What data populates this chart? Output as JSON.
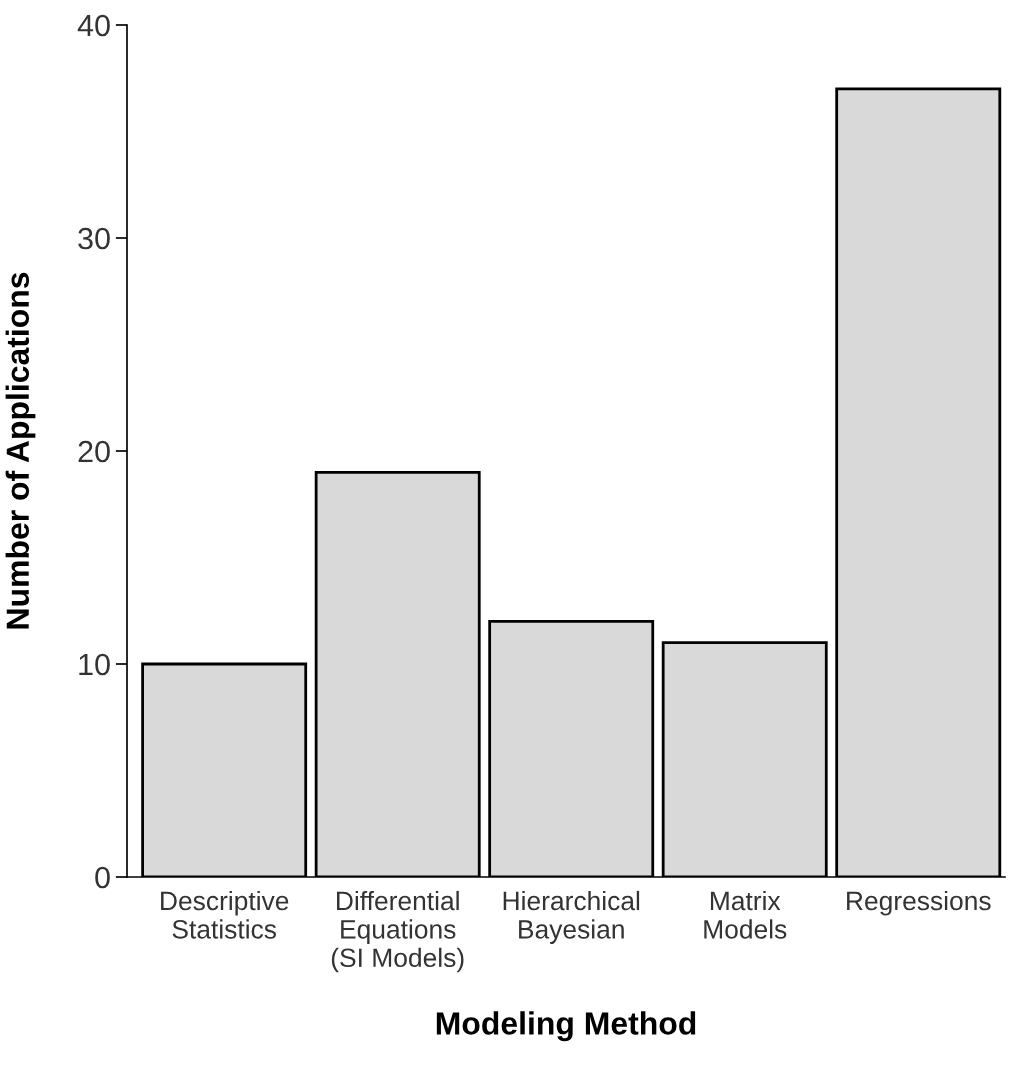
{
  "chart_data": {
    "type": "bar",
    "xlabel": "Modeling Method",
    "ylabel": "Number of Applications",
    "categories": [
      "Descriptive\nStatistics",
      "Differential\nEquations\n(SI Models)",
      "Hierarchical\nBayesian",
      "Matrix\nModels",
      "Regressions"
    ],
    "values": [
      10,
      19,
      12,
      11,
      37
    ],
    "color": "#d9d9d9",
    "ylim": [
      0,
      40
    ],
    "yticks": [
      0,
      10,
      20,
      30,
      40
    ],
    "grid": false,
    "legend": false
  }
}
